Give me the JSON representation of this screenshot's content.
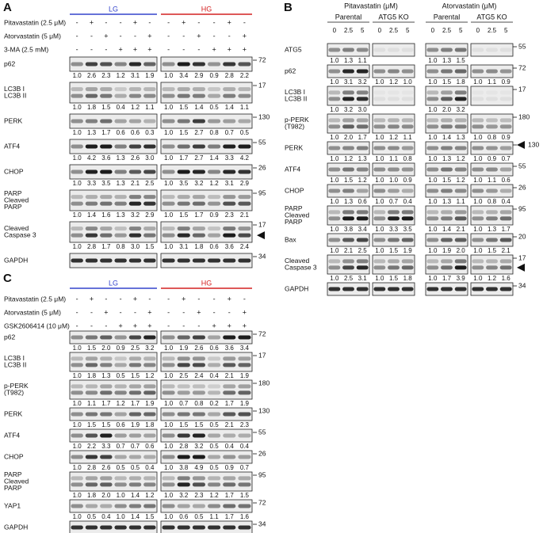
{
  "panels": [
    {
      "letter": "A",
      "groups": [
        {
          "label": "LG",
          "color": "#3344cc"
        },
        {
          "label": "HG",
          "color": "#d42020"
        }
      ],
      "treatments": [
        {
          "label": "Pitavastatin (2.5 μM)",
          "signs": [
            "-",
            "+",
            "-",
            "-",
            "+",
            "-",
            "-",
            "+",
            "-",
            "-",
            "+",
            "-"
          ]
        },
        {
          "label": "Atorvastatin (5 μM)",
          "signs": [
            "-",
            "-",
            "+",
            "-",
            "-",
            "+",
            "-",
            "-",
            "+",
            "-",
            "-",
            "+"
          ]
        },
        {
          "label": "3-MA (2.5 mM)",
          "signs": [
            "-",
            "-",
            "-",
            "+",
            "+",
            "+",
            "-",
            "-",
            "-",
            "+",
            "+",
            "+"
          ]
        }
      ],
      "blots": [
        {
          "label": [
            "p62"
          ],
          "mw": [
            72
          ],
          "values": [
            [
              "1.0",
              "2.6",
              "2.3",
              "1.2",
              "3.1",
              "1.9"
            ],
            [
              "1.0",
              "3.4",
              "2.9",
              "0.9",
              "2.8",
              "2.2"
            ]
          ]
        },
        {
          "label": [
            "LC3B I",
            "LC3B II"
          ],
          "mw": [
            17
          ],
          "values": [
            [
              "1.0",
              "1.8",
              "1.5",
              "0.4",
              "1.2",
              "1.1"
            ],
            [
              "1.0",
              "1.5",
              "1.4",
              "0.5",
              "1.4",
              "1.1"
            ]
          ]
        },
        {
          "label": [
            "PERK"
          ],
          "mw": [
            130
          ],
          "values": [
            [
              "1.0",
              "1.3",
              "1.7",
              "0.6",
              "0.6",
              "0.3"
            ],
            [
              "1.0",
              "1.5",
              "2.7",
              "0.8",
              "0.7",
              "0.5"
            ]
          ]
        },
        {
          "label": [
            "ATF4"
          ],
          "mw": [
            55
          ],
          "values": [
            [
              "1.0",
              "4.2",
              "3.6",
              "1.3",
              "2.6",
              "3.0"
            ],
            [
              "1.0",
              "1.7",
              "2.7",
              "1.4",
              "3.3",
              "4.2"
            ]
          ]
        },
        {
          "label": [
            "CHOP"
          ],
          "mw": [
            26
          ],
          "values": [
            [
              "1.0",
              "3.3",
              "3.5",
              "1.3",
              "2.1",
              "2.5"
            ],
            [
              "1.0",
              "3.5",
              "3.2",
              "1.2",
              "3.1",
              "2.9"
            ]
          ]
        },
        {
          "label": [
            "PARP",
            "Cleaved",
            "PARP"
          ],
          "mw": [
            95
          ],
          "values": [
            [
              "1.0",
              "1.4",
              "1.6",
              "1.3",
              "3.2",
              "2.9"
            ],
            [
              "1.0",
              "1.5",
              "1.7",
              "0.9",
              "2.3",
              "2.1"
            ]
          ]
        },
        {
          "label": [
            "Cleaved",
            "Caspase 3"
          ],
          "mw": [
            17
          ],
          "arrow": true,
          "values": [
            [
              "1.0",
              "2.8",
              "1.7",
              "0.8",
              "3.0",
              "1.5"
            ],
            [
              "1.0",
              "3.1",
              "1.8",
              "0.6",
              "3.6",
              "2.4"
            ]
          ]
        },
        {
          "label": [
            "GAPDH"
          ],
          "mw": [
            34
          ]
        }
      ]
    },
    {
      "letter": "B",
      "headers": [
        {
          "label": "Pitavastatin (μM)",
          "subs": [
            "Parental",
            "ATG5 KO"
          ]
        },
        {
          "label": "Atorvastatin (μM)",
          "subs": [
            "Parental",
            "ATG5 KO"
          ]
        }
      ],
      "doses": [
        "0",
        "2.5",
        "5",
        "0",
        "2.5",
        "5",
        "0",
        "2.5",
        "5",
        "0",
        "2.5",
        "5"
      ],
      "blots": [
        {
          "label": [
            "ATG5"
          ],
          "mw": [
            55
          ],
          "values": [
            [
              "1.0",
              "1.3",
              "1.1"
            ],
            null,
            [
              "1.0",
              "1.3",
              "1.5"
            ],
            null
          ]
        },
        {
          "label": [
            "p62"
          ],
          "mw": [
            72
          ],
          "values": [
            [
              "1.0",
              "3.1",
              "3.2"
            ],
            [
              "1.0",
              "1.2",
              "1.0"
            ],
            [
              "1.0",
              "1.5",
              "1.8"
            ],
            [
              "1.0",
              "1.1",
              "0.9"
            ]
          ]
        },
        {
          "label": [
            "LC3B I",
            "LC3B II"
          ],
          "mw": [
            17
          ],
          "values": [
            [
              "1.0",
              "3.2",
              "3.0"
            ],
            null,
            [
              "1.0",
              "2.0",
              "3.2"
            ],
            null
          ]
        },
        {
          "label": [
            "p-PERK",
            "(T982)"
          ],
          "mw": [
            180
          ],
          "values": [
            [
              "1.0",
              "2.0",
              "1.7"
            ],
            [
              "1.0",
              "1.2",
              "1.1"
            ],
            [
              "1.0",
              "1.4",
              "1.3"
            ],
            [
              "1.0",
              "0.8",
              "0.9"
            ]
          ]
        },
        {
          "label": [
            "PERK"
          ],
          "mw": [
            130
          ],
          "arrow": true,
          "values": [
            [
              "1.0",
              "1.2",
              "1.3"
            ],
            [
              "1.0",
              "1.1",
              "0.8"
            ],
            [
              "1.0",
              "1.3",
              "1.2"
            ],
            [
              "1.0",
              "0.9",
              "0.7"
            ]
          ]
        },
        {
          "label": [
            "ATF4"
          ],
          "mw": [
            55
          ],
          "values": [
            [
              "1.0",
              "1.5",
              "1.2"
            ],
            [
              "1.0",
              "1.0",
              "0.9"
            ],
            [
              "1.0",
              "1.5",
              "1.2"
            ],
            [
              "1.0",
              "1.1",
              "0.6"
            ]
          ]
        },
        {
          "label": [
            "CHOP"
          ],
          "mw": [
            26
          ],
          "values": [
            [
              "1.0",
              "1.3",
              "0.6"
            ],
            [
              "1.0",
              "0.7",
              "0.4"
            ],
            [
              "1.0",
              "1.3",
              "1.1"
            ],
            [
              "1.0",
              "0.8",
              "0.4"
            ]
          ]
        },
        {
          "label": [
            "PARP",
            "Cleaved",
            "PARP"
          ],
          "mw": [
            95
          ],
          "values": [
            [
              "1.0",
              "3.8",
              "3.4"
            ],
            [
              "1.0",
              "3.3",
              "3.5"
            ],
            [
              "1.0",
              "1.4",
              "2.1"
            ],
            [
              "1.0",
              "1.3",
              "1.7"
            ]
          ]
        },
        {
          "label": [
            "Bax"
          ],
          "mw": [
            20
          ],
          "values": [
            [
              "1.0",
              "2.1",
              "2.5"
            ],
            [
              "1.0",
              "1.5",
              "1.9"
            ],
            [
              "1.0",
              "1.9",
              "2.0"
            ],
            [
              "1.0",
              "1.5",
              "2.1"
            ]
          ]
        },
        {
          "label": [
            "Cleaved",
            "Caspase 3"
          ],
          "mw": [
            17
          ],
          "arrow": true,
          "values": [
            [
              "1.0",
              "2.5",
              "3.1"
            ],
            [
              "1.0",
              "1.5",
              "1.8"
            ],
            [
              "1.0",
              "1.7",
              "3.9"
            ],
            [
              "1.0",
              "1.2",
              "1.6"
            ]
          ]
        },
        {
          "label": [
            "GAPDH"
          ],
          "mw": [
            34
          ]
        }
      ]
    },
    {
      "letter": "C",
      "groups": [
        {
          "label": "LG",
          "color": "#3344cc"
        },
        {
          "label": "HG",
          "color": "#d42020"
        }
      ],
      "treatments": [
        {
          "label": "Pitavastatin (2.5 μM)",
          "signs": [
            "-",
            "+",
            "-",
            "-",
            "+",
            "-",
            "-",
            "+",
            "-",
            "-",
            "+",
            "-"
          ]
        },
        {
          "label": "Atorvastatin (5 μM)",
          "signs": [
            "-",
            "-",
            "+",
            "-",
            "-",
            "+",
            "-",
            "-",
            "+",
            "-",
            "-",
            "+"
          ]
        },
        {
          "label": "GSK2606414 (10 μM)",
          "signs": [
            "-",
            "-",
            "-",
            "+",
            "+",
            "+",
            "-",
            "-",
            "-",
            "+",
            "+",
            "+"
          ]
        }
      ],
      "blots": [
        {
          "label": [
            "p62"
          ],
          "mw": [
            72
          ],
          "values": [
            [
              "1.0",
              "1.5",
              "2.0",
              "0.9",
              "2.5",
              "3.2"
            ],
            [
              "1.0",
              "1.9",
              "2.6",
              "0.6",
              "3.6",
              "3.4"
            ]
          ]
        },
        {
          "label": [
            "LC3B I",
            "LC3B II"
          ],
          "mw": [
            17
          ],
          "values": [
            [
              "1.0",
              "1.8",
              "1.3",
              "0.5",
              "1.5",
              "1.2"
            ],
            [
              "1.0",
              "2.5",
              "2.4",
              "0.4",
              "2.1",
              "1.9"
            ]
          ]
        },
        {
          "label": [
            "p-PERK",
            "(T982)"
          ],
          "mw": [
            180
          ],
          "values": [
            [
              "1.0",
              "1.1",
              "1.7",
              "1.2",
              "1.7",
              "1.9"
            ],
            [
              "1.0",
              "0.7",
              "0.8",
              "0.2",
              "1.7",
              "1.9"
            ]
          ]
        },
        {
          "label": [
            "PERK"
          ],
          "mw": [
            130
          ],
          "values": [
            [
              "1.0",
              "1.5",
              "1.5",
              "0.6",
              "1.9",
              "1.8"
            ],
            [
              "1.0",
              "1.5",
              "1.5",
              "0.5",
              "2.1",
              "2.3"
            ]
          ]
        },
        {
          "label": [
            "ATF4"
          ],
          "mw": [
            55
          ],
          "values": [
            [
              "1.0",
              "2.2",
              "3.3",
              "0.7",
              "0.7",
              "0.6"
            ],
            [
              "1.0",
              "2.8",
              "3.2",
              "0.5",
              "0.4",
              "0.4"
            ]
          ]
        },
        {
          "label": [
            "CHOP"
          ],
          "mw": [
            26
          ],
          "values": [
            [
              "1.0",
              "2.8",
              "2.6",
              "0.5",
              "0.5",
              "0.4"
            ],
            [
              "1.0",
              "3.8",
              "4.9",
              "0.5",
              "0.9",
              "0.7"
            ]
          ]
        },
        {
          "label": [
            "PARP",
            "Cleaved",
            "PARP"
          ],
          "mw": [
            95
          ],
          "values": [
            [
              "1.0",
              "1.8",
              "2.0",
              "1.0",
              "1.4",
              "1.2"
            ],
            [
              "1.0",
              "3.2",
              "2.3",
              "1.2",
              "1.7",
              "1.5"
            ]
          ]
        },
        {
          "label": [
            "YAP1"
          ],
          "mw": [
            72
          ],
          "values": [
            [
              "1.0",
              "0.5",
              "0.4",
              "1.0",
              "1.4",
              "1.5"
            ],
            [
              "1.0",
              "0.6",
              "0.5",
              "1.1",
              "1.7",
              "1.6"
            ]
          ]
        },
        {
          "label": [
            "GAPDH"
          ],
          "mw": [
            34
          ]
        }
      ]
    }
  ]
}
